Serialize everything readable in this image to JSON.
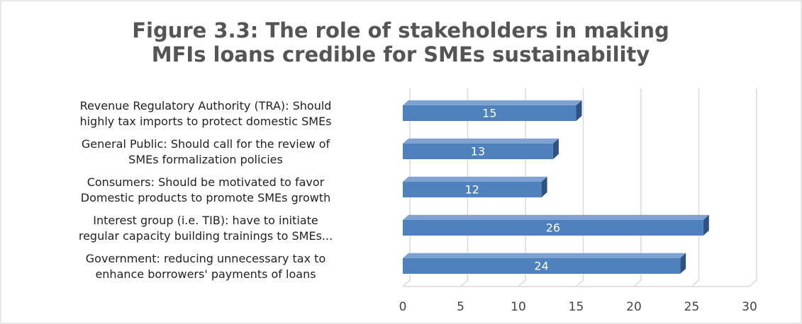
{
  "chart_data": {
    "type": "bar3d",
    "orientation": "horizontal",
    "title": "Figure 3.3: The role of stakeholders in making\nMFIs loans credible for SMEs sustainability",
    "categories": [
      "Revenue Regulatory Authority (TRA): Should\nhighly tax imports to protect domestic SMEs",
      "General Public: Should call for the review of\nSMEs formalization policies",
      "Consumers: Should be motivated to favor\nDomestic products to promote SMEs growth",
      "Interest group (i.e. TIB): have to initiate\nregular capacity building trainings to SMEs...",
      "Government: reducing unnecessary tax to\nenhance borrowers' payments of loans"
    ],
    "values": [
      15,
      13,
      12,
      26,
      24
    ],
    "color": "#4f81bd",
    "xlim": [
      0,
      30
    ],
    "xticks": [
      0,
      5,
      10,
      15,
      20,
      25,
      30
    ],
    "grid": true
  }
}
